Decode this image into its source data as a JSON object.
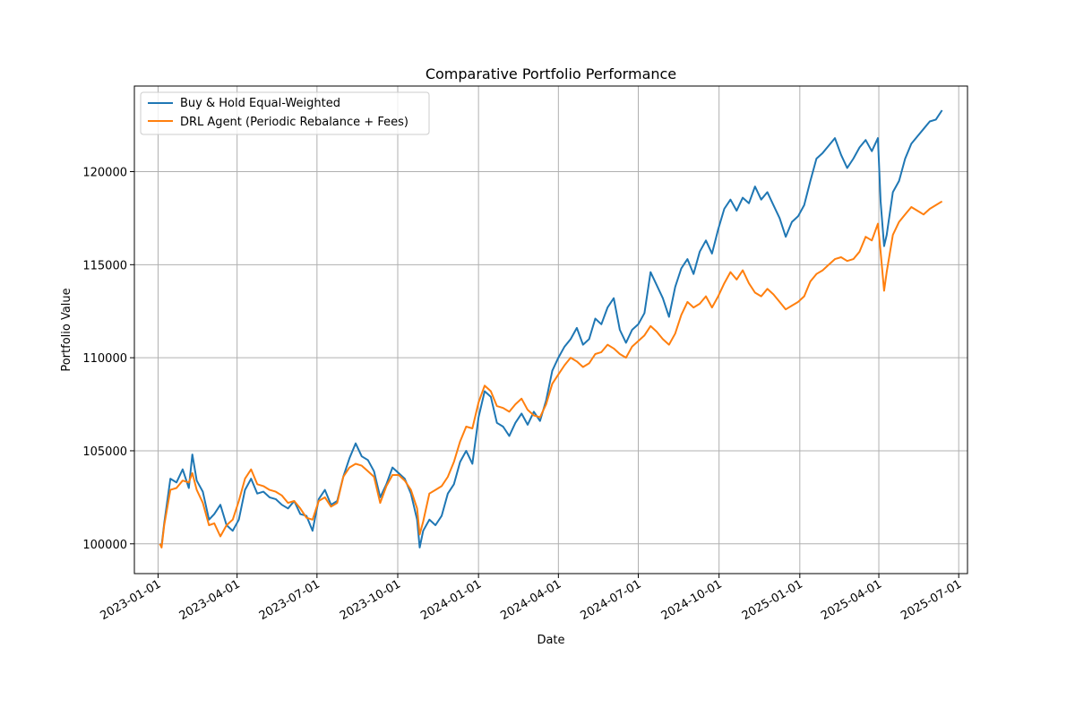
{
  "chart_data": {
    "type": "line",
    "title": "Comparative Portfolio Performance",
    "xlabel": "Date",
    "ylabel": "Portfolio Value",
    "xlim": [
      "2022-12-05",
      "2025-07-11"
    ],
    "ylim": [
      98400,
      124600
    ],
    "x_ticks": [
      "2023-01-01",
      "2023-04-01",
      "2023-07-01",
      "2023-10-01",
      "2024-01-01",
      "2024-04-01",
      "2024-07-01",
      "2024-10-01",
      "2025-01-01",
      "2025-04-01",
      "2025-07-01"
    ],
    "y_ticks": [
      100000,
      105000,
      110000,
      115000,
      120000
    ],
    "grid": true,
    "legend_position": "top-left",
    "series": [
      {
        "name": "Buy & Hold Equal-Weighted",
        "color": "#1f77b4",
        "points": [
          [
            "2023-01-03",
            100000
          ],
          [
            "2023-01-05",
            99900
          ],
          [
            "2023-01-08",
            101100
          ],
          [
            "2023-01-15",
            103500
          ],
          [
            "2023-01-22",
            103300
          ],
          [
            "2023-01-29",
            104000
          ],
          [
            "2023-02-05",
            103000
          ],
          [
            "2023-02-09",
            104800
          ],
          [
            "2023-02-14",
            103400
          ],
          [
            "2023-02-21",
            102800
          ],
          [
            "2023-02-28",
            101300
          ],
          [
            "2023-03-06",
            101600
          ],
          [
            "2023-03-13",
            102100
          ],
          [
            "2023-03-20",
            101000
          ],
          [
            "2023-03-27",
            100700
          ],
          [
            "2023-04-03",
            101300
          ],
          [
            "2023-04-10",
            102900
          ],
          [
            "2023-04-17",
            103500
          ],
          [
            "2023-04-24",
            102700
          ],
          [
            "2023-05-01",
            102800
          ],
          [
            "2023-05-08",
            102500
          ],
          [
            "2023-05-15",
            102400
          ],
          [
            "2023-05-22",
            102100
          ],
          [
            "2023-05-29",
            101900
          ],
          [
            "2023-06-05",
            102300
          ],
          [
            "2023-06-12",
            101600
          ],
          [
            "2023-06-19",
            101500
          ],
          [
            "2023-06-26",
            100700
          ],
          [
            "2023-07-03",
            102400
          ],
          [
            "2023-07-10",
            102900
          ],
          [
            "2023-07-17",
            102100
          ],
          [
            "2023-07-24",
            102300
          ],
          [
            "2023-07-31",
            103600
          ],
          [
            "2023-08-07",
            104600
          ],
          [
            "2023-08-14",
            105400
          ],
          [
            "2023-08-21",
            104700
          ],
          [
            "2023-08-28",
            104500
          ],
          [
            "2023-09-04",
            103900
          ],
          [
            "2023-09-11",
            102500
          ],
          [
            "2023-09-18",
            103200
          ],
          [
            "2023-09-25",
            104100
          ],
          [
            "2023-10-02",
            103800
          ],
          [
            "2023-10-09",
            103500
          ],
          [
            "2023-10-16",
            102700
          ],
          [
            "2023-10-23",
            101300
          ],
          [
            "2023-10-26",
            99800
          ],
          [
            "2023-10-30",
            100700
          ],
          [
            "2023-11-06",
            101300
          ],
          [
            "2023-11-13",
            101000
          ],
          [
            "2023-11-20",
            101500
          ],
          [
            "2023-11-27",
            102700
          ],
          [
            "2023-12-04",
            103200
          ],
          [
            "2023-12-11",
            104400
          ],
          [
            "2023-12-18",
            105000
          ],
          [
            "2023-12-25",
            104300
          ],
          [
            "2024-01-01",
            106800
          ],
          [
            "2024-01-08",
            108200
          ],
          [
            "2024-01-15",
            107900
          ],
          [
            "2024-01-22",
            106500
          ],
          [
            "2024-01-29",
            106300
          ],
          [
            "2024-02-05",
            105800
          ],
          [
            "2024-02-12",
            106500
          ],
          [
            "2024-02-19",
            107000
          ],
          [
            "2024-02-26",
            106400
          ],
          [
            "2024-03-04",
            107100
          ],
          [
            "2024-03-11",
            106600
          ],
          [
            "2024-03-18",
            107700
          ],
          [
            "2024-03-25",
            109300
          ],
          [
            "2024-04-01",
            110000
          ],
          [
            "2024-04-08",
            110600
          ],
          [
            "2024-04-15",
            111000
          ],
          [
            "2024-04-22",
            111600
          ],
          [
            "2024-04-29",
            110700
          ],
          [
            "2024-05-06",
            111000
          ],
          [
            "2024-05-13",
            112100
          ],
          [
            "2024-05-20",
            111800
          ],
          [
            "2024-05-27",
            112700
          ],
          [
            "2024-06-03",
            113200
          ],
          [
            "2024-06-10",
            111500
          ],
          [
            "2024-06-17",
            110800
          ],
          [
            "2024-06-24",
            111500
          ],
          [
            "2024-07-01",
            111800
          ],
          [
            "2024-07-08",
            112400
          ],
          [
            "2024-07-15",
            114600
          ],
          [
            "2024-07-22",
            113900
          ],
          [
            "2024-07-29",
            113200
          ],
          [
            "2024-08-05",
            112200
          ],
          [
            "2024-08-12",
            113800
          ],
          [
            "2024-08-19",
            114800
          ],
          [
            "2024-08-26",
            115300
          ],
          [
            "2024-09-02",
            114500
          ],
          [
            "2024-09-09",
            115700
          ],
          [
            "2024-09-16",
            116300
          ],
          [
            "2024-09-23",
            115600
          ],
          [
            "2024-09-30",
            116900
          ],
          [
            "2024-10-07",
            118000
          ],
          [
            "2024-10-14",
            118500
          ],
          [
            "2024-10-21",
            117900
          ],
          [
            "2024-10-28",
            118600
          ],
          [
            "2024-11-04",
            118300
          ],
          [
            "2024-11-11",
            119200
          ],
          [
            "2024-11-18",
            118500
          ],
          [
            "2024-11-25",
            118900
          ],
          [
            "2024-12-02",
            118200
          ],
          [
            "2024-12-09",
            117500
          ],
          [
            "2024-12-16",
            116500
          ],
          [
            "2024-12-23",
            117300
          ],
          [
            "2024-12-30",
            117600
          ],
          [
            "2025-01-06",
            118200
          ],
          [
            "2025-01-13",
            119500
          ],
          [
            "2025-01-20",
            120700
          ],
          [
            "2025-01-27",
            121000
          ],
          [
            "2025-02-03",
            121400
          ],
          [
            "2025-02-10",
            121800
          ],
          [
            "2025-02-17",
            120900
          ],
          [
            "2025-02-24",
            120200
          ],
          [
            "2025-03-03",
            120700
          ],
          [
            "2025-03-10",
            121300
          ],
          [
            "2025-03-17",
            121700
          ],
          [
            "2025-03-24",
            121100
          ],
          [
            "2025-03-31",
            121800
          ],
          [
            "2025-04-03",
            118400
          ],
          [
            "2025-04-07",
            116000
          ],
          [
            "2025-04-10",
            116600
          ],
          [
            "2025-04-17",
            118900
          ],
          [
            "2025-04-24",
            119500
          ],
          [
            "2025-05-01",
            120700
          ],
          [
            "2025-05-08",
            121500
          ],
          [
            "2025-05-15",
            121900
          ],
          [
            "2025-05-22",
            122300
          ],
          [
            "2025-05-29",
            122700
          ],
          [
            "2025-06-05",
            122800
          ],
          [
            "2025-06-12",
            123300
          ]
        ]
      },
      {
        "name": "DRL Agent (Periodic Rebalance + Fees)",
        "color": "#ff7f0e",
        "points": [
          [
            "2023-01-03",
            100000
          ],
          [
            "2023-01-05",
            99800
          ],
          [
            "2023-01-08",
            101000
          ],
          [
            "2023-01-15",
            102900
          ],
          [
            "2023-01-22",
            103000
          ],
          [
            "2023-01-29",
            103400
          ],
          [
            "2023-02-05",
            103300
          ],
          [
            "2023-02-09",
            103800
          ],
          [
            "2023-02-14",
            102900
          ],
          [
            "2023-02-21",
            102200
          ],
          [
            "2023-02-28",
            101000
          ],
          [
            "2023-03-06",
            101100
          ],
          [
            "2023-03-13",
            100400
          ],
          [
            "2023-03-20",
            101000
          ],
          [
            "2023-03-27",
            101300
          ],
          [
            "2023-04-03",
            102300
          ],
          [
            "2023-04-10",
            103500
          ],
          [
            "2023-04-17",
            104000
          ],
          [
            "2023-04-24",
            103200
          ],
          [
            "2023-05-01",
            103100
          ],
          [
            "2023-05-08",
            102900
          ],
          [
            "2023-05-15",
            102800
          ],
          [
            "2023-05-22",
            102600
          ],
          [
            "2023-05-29",
            102200
          ],
          [
            "2023-06-05",
            102300
          ],
          [
            "2023-06-12",
            101900
          ],
          [
            "2023-06-19",
            101400
          ],
          [
            "2023-06-26",
            101300
          ],
          [
            "2023-07-03",
            102300
          ],
          [
            "2023-07-10",
            102500
          ],
          [
            "2023-07-17",
            102000
          ],
          [
            "2023-07-24",
            102200
          ],
          [
            "2023-07-31",
            103600
          ],
          [
            "2023-08-07",
            104100
          ],
          [
            "2023-08-14",
            104300
          ],
          [
            "2023-08-21",
            104200
          ],
          [
            "2023-08-28",
            103900
          ],
          [
            "2023-09-04",
            103600
          ],
          [
            "2023-09-11",
            102200
          ],
          [
            "2023-09-18",
            103100
          ],
          [
            "2023-09-25",
            103700
          ],
          [
            "2023-10-02",
            103700
          ],
          [
            "2023-10-09",
            103400
          ],
          [
            "2023-10-16",
            102900
          ],
          [
            "2023-10-23",
            101900
          ],
          [
            "2023-10-26",
            100500
          ],
          [
            "2023-10-30",
            101200
          ],
          [
            "2023-11-06",
            102700
          ],
          [
            "2023-11-13",
            102900
          ],
          [
            "2023-11-20",
            103100
          ],
          [
            "2023-11-27",
            103600
          ],
          [
            "2023-12-04",
            104400
          ],
          [
            "2023-12-11",
            105500
          ],
          [
            "2023-12-18",
            106300
          ],
          [
            "2023-12-25",
            106200
          ],
          [
            "2024-01-01",
            107600
          ],
          [
            "2024-01-08",
            108500
          ],
          [
            "2024-01-15",
            108200
          ],
          [
            "2024-01-22",
            107400
          ],
          [
            "2024-01-29",
            107300
          ],
          [
            "2024-02-05",
            107100
          ],
          [
            "2024-02-12",
            107500
          ],
          [
            "2024-02-19",
            107800
          ],
          [
            "2024-02-26",
            107200
          ],
          [
            "2024-03-04",
            106900
          ],
          [
            "2024-03-11",
            106800
          ],
          [
            "2024-03-18",
            107500
          ],
          [
            "2024-03-25",
            108600
          ],
          [
            "2024-04-01",
            109100
          ],
          [
            "2024-04-08",
            109600
          ],
          [
            "2024-04-15",
            110000
          ],
          [
            "2024-04-22",
            109800
          ],
          [
            "2024-04-29",
            109500
          ],
          [
            "2024-05-06",
            109700
          ],
          [
            "2024-05-13",
            110200
          ],
          [
            "2024-05-20",
            110300
          ],
          [
            "2024-05-27",
            110700
          ],
          [
            "2024-06-03",
            110500
          ],
          [
            "2024-06-10",
            110200
          ],
          [
            "2024-06-17",
            110000
          ],
          [
            "2024-06-24",
            110600
          ],
          [
            "2024-07-01",
            110900
          ],
          [
            "2024-07-08",
            111200
          ],
          [
            "2024-07-15",
            111700
          ],
          [
            "2024-07-22",
            111400
          ],
          [
            "2024-07-29",
            111000
          ],
          [
            "2024-08-05",
            110700
          ],
          [
            "2024-08-12",
            111300
          ],
          [
            "2024-08-19",
            112300
          ],
          [
            "2024-08-26",
            113000
          ],
          [
            "2024-09-02",
            112700
          ],
          [
            "2024-09-09",
            112900
          ],
          [
            "2024-09-16",
            113300
          ],
          [
            "2024-09-23",
            112700
          ],
          [
            "2024-09-30",
            113300
          ],
          [
            "2024-10-07",
            114000
          ],
          [
            "2024-10-14",
            114600
          ],
          [
            "2024-10-21",
            114200
          ],
          [
            "2024-10-28",
            114700
          ],
          [
            "2024-11-04",
            114000
          ],
          [
            "2024-11-11",
            113500
          ],
          [
            "2024-11-18",
            113300
          ],
          [
            "2024-11-25",
            113700
          ],
          [
            "2024-12-02",
            113400
          ],
          [
            "2024-12-09",
            113000
          ],
          [
            "2024-12-16",
            112600
          ],
          [
            "2024-12-23",
            112800
          ],
          [
            "2024-12-30",
            113000
          ],
          [
            "2025-01-06",
            113300
          ],
          [
            "2025-01-13",
            114100
          ],
          [
            "2025-01-20",
            114500
          ],
          [
            "2025-01-27",
            114700
          ],
          [
            "2025-02-03",
            115000
          ],
          [
            "2025-02-10",
            115300
          ],
          [
            "2025-02-17",
            115400
          ],
          [
            "2025-02-24",
            115200
          ],
          [
            "2025-03-03",
            115300
          ],
          [
            "2025-03-10",
            115700
          ],
          [
            "2025-03-17",
            116500
          ],
          [
            "2025-03-24",
            116300
          ],
          [
            "2025-03-31",
            117200
          ],
          [
            "2025-04-03",
            115700
          ],
          [
            "2025-04-07",
            113600
          ],
          [
            "2025-04-10",
            114600
          ],
          [
            "2025-04-17",
            116600
          ],
          [
            "2025-04-24",
            117300
          ],
          [
            "2025-05-01",
            117700
          ],
          [
            "2025-05-08",
            118100
          ],
          [
            "2025-05-15",
            117900
          ],
          [
            "2025-05-22",
            117700
          ],
          [
            "2025-05-29",
            118000
          ],
          [
            "2025-06-05",
            118200
          ],
          [
            "2025-06-12",
            118400
          ]
        ]
      }
    ]
  }
}
